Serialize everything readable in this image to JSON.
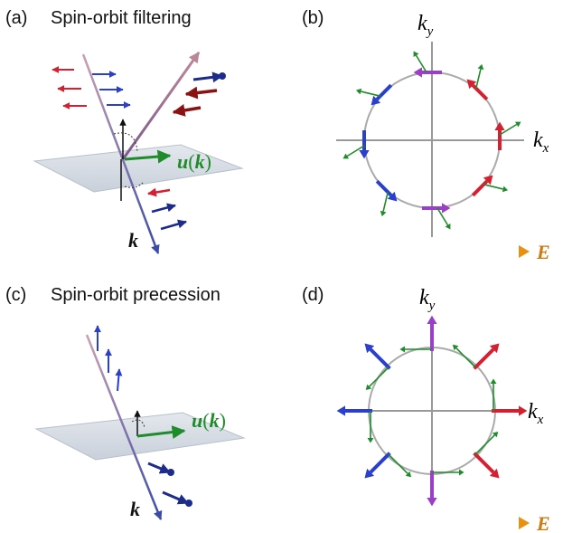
{
  "panels": {
    "a": {
      "tag": "(a)",
      "caption": "Spin-orbit filtering",
      "vector_label": "u(k)",
      "k_label": "k"
    },
    "b": {
      "tag": "(b)",
      "kx": "k",
      "kx_sub": "x",
      "ky": "k",
      "ky_sub": "y",
      "field": "E"
    },
    "c": {
      "tag": "(c)",
      "caption": "Spin-orbit precession",
      "vector_label": "u(k)",
      "k_label": "k"
    },
    "d": {
      "tag": "(d)",
      "kx": "k",
      "kx_sub": "x",
      "ky": "k",
      "ky_sub": "y",
      "field": "E"
    }
  },
  "colors": {
    "red": "#d42030",
    "blue": "#2a3fcc",
    "purple": "#9a3fc8",
    "green": "#1e8c2a",
    "darkred": "#8b1212",
    "navy": "#1b2c8c",
    "orange": "#f0a020",
    "axis": "#888888",
    "circle": "#aaaaaa"
  }
}
